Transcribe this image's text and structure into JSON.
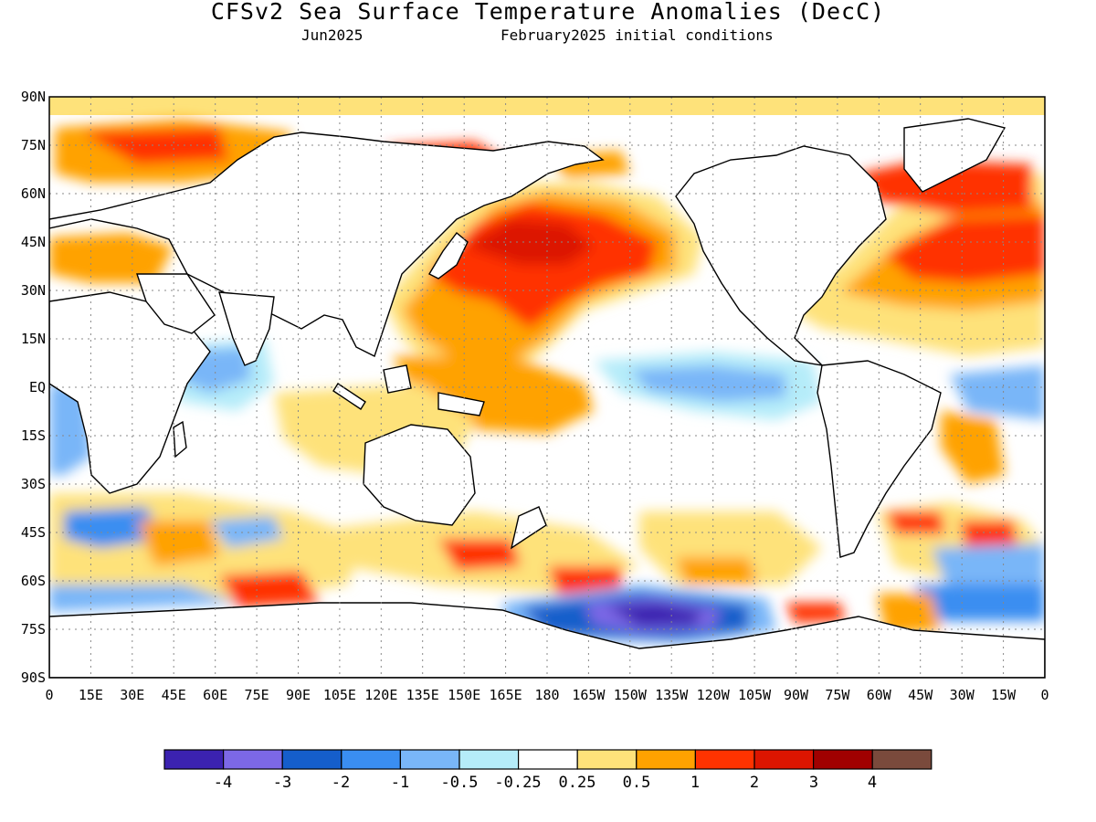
{
  "header": {
    "title": "CFSv2 Sea Surface Temperature Anomalies (DecC)",
    "month": "Jun2025",
    "init": "February2025 initial conditions"
  },
  "axes": {
    "lat_labels": [
      "90N",
      "75N",
      "60N",
      "45N",
      "30N",
      "15N",
      "EQ",
      "15S",
      "30S",
      "45S",
      "60S",
      "75S",
      "90S"
    ],
    "lon_labels": [
      "0",
      "15E",
      "30E",
      "45E",
      "60E",
      "75E",
      "90E",
      "105E",
      "120E",
      "135E",
      "150E",
      "165E",
      "180",
      "165W",
      "150W",
      "135W",
      "120W",
      "105W",
      "90W",
      "75W",
      "60W",
      "45W",
      "30W",
      "15W",
      "0"
    ]
  },
  "colorbar": {
    "colors": [
      "#3b22b0",
      "#7c68e6",
      "#155ecb",
      "#3a8ef1",
      "#79b6f8",
      "#b5ecf9",
      "#ffffff",
      "#fee27a",
      "#ffa200",
      "#ff3300",
      "#dc1500",
      "#a00000",
      "#7a4a3c"
    ],
    "labels": [
      "-4",
      "-3",
      "-2",
      "-1",
      "-0.5",
      "-0.25",
      "0.25",
      "0.5",
      "1",
      "2",
      "3",
      "4"
    ]
  },
  "colors": {
    "land": "#ffffff",
    "ocean_neutral": "#ffffff",
    "arctic_ice": "#fee27a",
    "coast": "#000000"
  }
}
